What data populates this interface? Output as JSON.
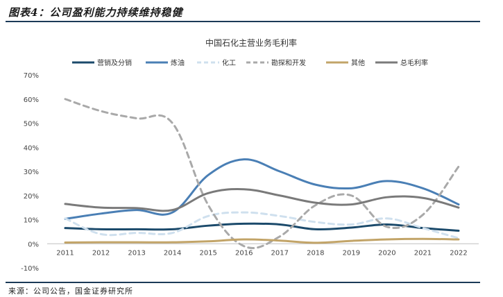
{
  "header": {
    "title": "图表4：公司盈利能力持续维持稳健"
  },
  "footer": {
    "source": "来源：公司公告，国金证券研究所"
  },
  "colors": {
    "营销及分销": "#1b4a6b",
    "炼油": "#4a7fb5",
    "化工": "#cfe0ee",
    "勘探和开发": "#a9a9a9",
    "其他": "#c2a468",
    "总毛利率": "#7a7a7a"
  },
  "chart_data": {
    "type": "line",
    "title": "中国石化主营业务毛利率",
    "categories": [
      "2011",
      "2012",
      "2013",
      "2014",
      "2015",
      "2016",
      "2017",
      "2018",
      "2019",
      "2020",
      "2021",
      "2022"
    ],
    "y_ticks": [
      "-10%",
      "0%",
      "10%",
      "20%",
      "30%",
      "40%",
      "50%",
      "60%",
      "70%"
    ],
    "ylim": [
      -10,
      70
    ],
    "legend_position": "top",
    "series": [
      {
        "name": "营销及分销",
        "style": "solid",
        "values": [
          6.5,
          6.0,
          6.0,
          6.0,
          7.5,
          8.3,
          8.0,
          6.0,
          6.7,
          8.0,
          6.5,
          5.4
        ]
      },
      {
        "name": "炼油",
        "style": "solid",
        "values": [
          10.3,
          12.5,
          14.0,
          13.0,
          28.5,
          35.0,
          30.0,
          24.5,
          23.0,
          26.0,
          23.0,
          16.3
        ]
      },
      {
        "name": "化工",
        "style": "dashed",
        "values": [
          10.5,
          4.0,
          4.5,
          4.5,
          11.5,
          13.0,
          11.5,
          9.0,
          8.0,
          10.5,
          6.5,
          2.3
        ]
      },
      {
        "name": "勘探和开发",
        "style": "dashed",
        "values": [
          60.0,
          55.0,
          52.0,
          50.0,
          16.0,
          -1.0,
          3.0,
          16.0,
          20.0,
          7.0,
          12.0,
          32.0
        ]
      },
      {
        "name": "其他",
        "style": "solid",
        "values": [
          0.5,
          0.6,
          0.6,
          0.6,
          1.0,
          1.8,
          1.3,
          0.4,
          1.2,
          1.8,
          2.0,
          1.8
        ]
      },
      {
        "name": "总毛利率",
        "style": "solid",
        "values": [
          16.5,
          15.0,
          14.8,
          14.0,
          21.0,
          22.6,
          20.0,
          17.0,
          16.3,
          19.3,
          19.0,
          15.0
        ]
      }
    ]
  }
}
